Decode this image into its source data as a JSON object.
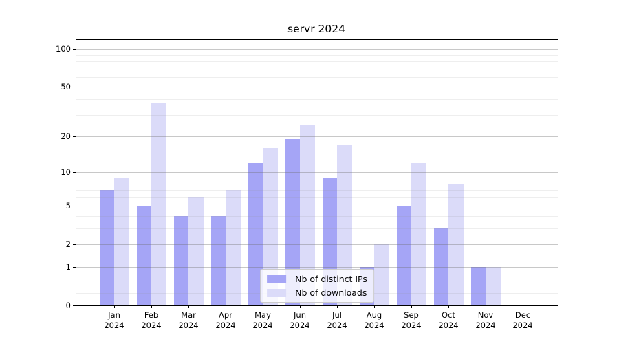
{
  "chart_data": {
    "type": "bar",
    "title": "servr 2024",
    "months": [
      "Jan",
      "Feb",
      "Mar",
      "Apr",
      "May",
      "Jun",
      "Jul",
      "Aug",
      "Sep",
      "Oct",
      "Nov",
      "Dec"
    ],
    "year": "2024",
    "series": [
      {
        "name": "Nb of distinct IPs",
        "color": "#a5a5f6",
        "values": [
          7,
          5,
          4,
          4,
          12,
          19,
          9,
          1,
          5,
          3,
          1,
          0
        ]
      },
      {
        "name": "Nb of downloads",
        "color": "#dbdbf9",
        "values": [
          9,
          37,
          6,
          7,
          16,
          25,
          17,
          2,
          12,
          8,
          1,
          0
        ]
      }
    ],
    "xlabel": "",
    "ylabel": "",
    "yscale": "log1p",
    "yticks": [
      0,
      1,
      2,
      5,
      10,
      20,
      50,
      100
    ],
    "yminor": [
      0.25,
      0.5,
      0.75,
      3,
      4,
      6,
      7,
      8,
      9,
      30,
      40,
      60,
      70,
      80,
      90
    ],
    "ylim": [
      0,
      118
    ],
    "grid": true,
    "legend_position": "lower center"
  },
  "colors": {
    "bar_distinct_ips": "#a5a5f6",
    "bar_downloads": "#dbdbf9",
    "spine": "#000000",
    "grid_major": "#c6c6c6",
    "grid_minor": "#eeeeee",
    "legend_border": "#cccccc",
    "legend_background": "rgba(255,255,255,0.8)",
    "text": "#000000"
  }
}
